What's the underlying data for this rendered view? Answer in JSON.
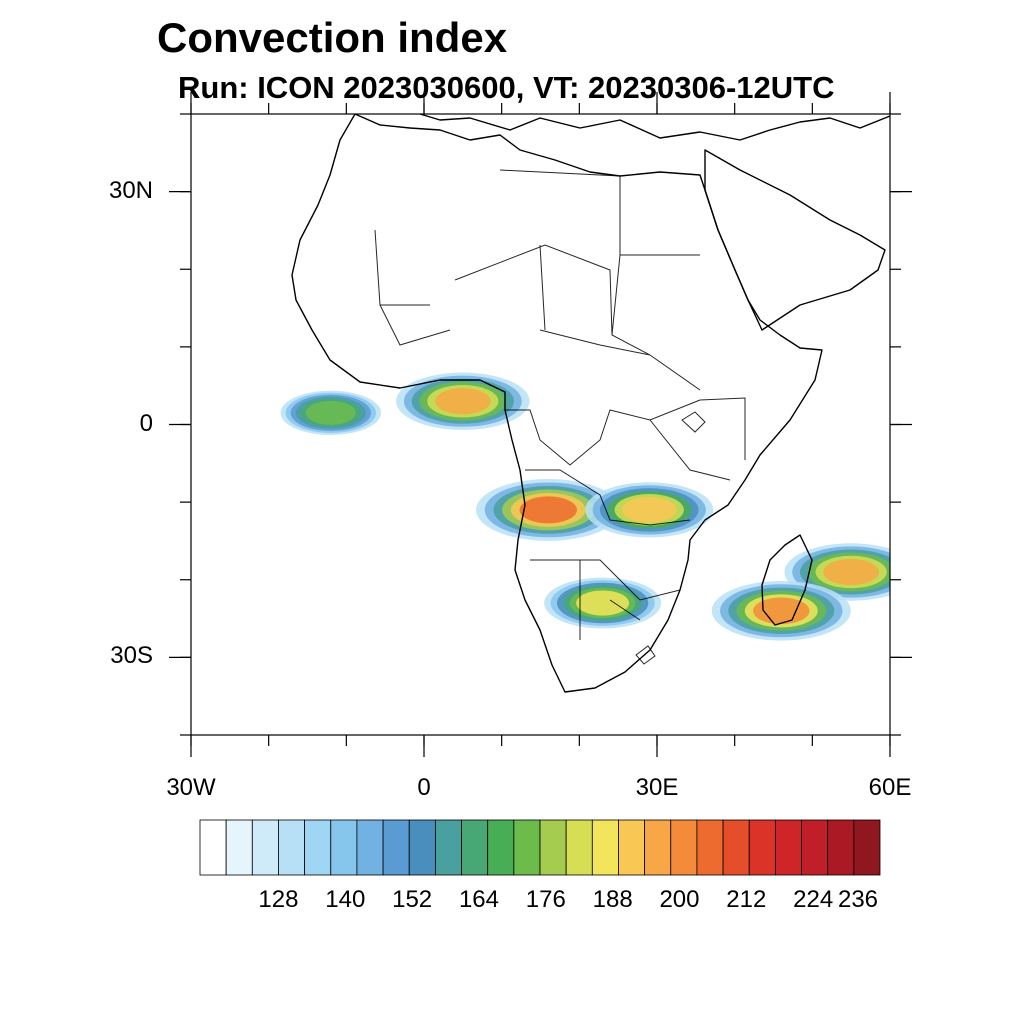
{
  "title": "Convection index",
  "subtitle": "Run: ICON 2023030600,  VT: 20230306-12UTC",
  "map": {
    "extent": {
      "lon_min": -30,
      "lon_max": 60,
      "lat_min": -40,
      "lat_max": 40
    },
    "lat_ticks": [
      {
        "value": 30,
        "label": "30N"
      },
      {
        "value": 0,
        "label": "0"
      },
      {
        "value": -30,
        "label": "30S"
      }
    ],
    "lon_ticks": [
      {
        "value": -30,
        "label": "30W"
      },
      {
        "value": 0,
        "label": "0"
      },
      {
        "value": 30,
        "label": "30E"
      },
      {
        "value": 60,
        "label": "60E"
      }
    ],
    "convection_regions": [
      {
        "name": "equatorial-atlantic-band",
        "lon": -12,
        "lat": 1.5,
        "intensity": 0.55
      },
      {
        "name": "gulf-of-guinea",
        "lon": 5,
        "lat": 3,
        "intensity": 0.85
      },
      {
        "name": "angola-core",
        "lon": 16,
        "lat": -11,
        "intensity": 0.95
      },
      {
        "name": "zambia-band",
        "lon": 29,
        "lat": -11,
        "intensity": 0.8
      },
      {
        "name": "botswana-cell",
        "lon": 23,
        "lat": -23,
        "intensity": 0.7
      },
      {
        "name": "madagascar-east",
        "lon": 55,
        "lat": -19,
        "intensity": 0.85
      },
      {
        "name": "madagascar-south",
        "lon": 46,
        "lat": -24,
        "intensity": 0.9
      }
    ]
  },
  "colorbar": {
    "colors": [
      "#ffffff",
      "#e6f5fc",
      "#cfeaf8",
      "#b7e0f6",
      "#9fd6f3",
      "#87c6ec",
      "#72b2e2",
      "#5b9bd3",
      "#4a8ebd",
      "#4a9f9f",
      "#48a875",
      "#47ae55",
      "#6cbc4c",
      "#a5cc4f",
      "#d6df54",
      "#f2e55b",
      "#f9c754",
      "#f8a746",
      "#f48b3a",
      "#ee6b30",
      "#e44e2a",
      "#dc3329",
      "#cf2528",
      "#c01e28",
      "#ab1a24",
      "#8f1820"
    ],
    "labels": [
      {
        "value": 128,
        "index": 3
      },
      {
        "value": 140,
        "index": 6
      },
      {
        "value": 152,
        "index": 9
      },
      {
        "value": 164,
        "index": 12
      },
      {
        "value": 176,
        "index": 15
      },
      {
        "value": 188,
        "index": 18
      },
      {
        "value": 200,
        "index": 21
      },
      {
        "value": 212,
        "index": 24
      },
      {
        "value": 224,
        "index": 27
      },
      {
        "value": 236,
        "index": 30
      }
    ]
  }
}
